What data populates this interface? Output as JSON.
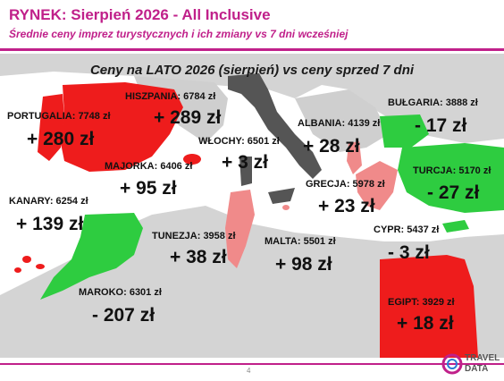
{
  "header": {
    "title": "RYNEK: Sierpień 2026 - All Inclusive",
    "subtitle": "Średnie ceny imprez turystycznych i ich zmiany vs 7 dni wcześniej"
  },
  "map_title": "Ceny na LATO 2026 (sierpień) vs ceny sprzed 7 dni",
  "destinations": [
    {
      "id": "portugalia",
      "label": "PORTUGALIA: 7748 zł",
      "delta": "+ 280 zł",
      "trend": "up"
    },
    {
      "id": "hiszpania",
      "label": "HISZPANIA: 6784 zł",
      "delta": "+ 289 zł",
      "trend": "up"
    },
    {
      "id": "majorka",
      "label": "MAJORKA: 6406 zł",
      "delta": "+ 95 zł",
      "trend": "up"
    },
    {
      "id": "wlochy",
      "label": "WŁOCHY: 6501 zł",
      "delta": "+ 3 zł",
      "trend": "flat"
    },
    {
      "id": "albania",
      "label": "ALBANIA: 4139 zł",
      "delta": "+ 28 zł",
      "trend": "up"
    },
    {
      "id": "bulgaria",
      "label": "BUŁGARIA: 3888 zł",
      "delta": "- 17 zł",
      "trend": "down"
    },
    {
      "id": "turcja",
      "label": "TURCJA: 5170 zł",
      "delta": "- 27 zł",
      "trend": "down"
    },
    {
      "id": "grecja",
      "label": "GRECJA: 5978 zł",
      "delta": "+ 23 zł",
      "trend": "up"
    },
    {
      "id": "kanary",
      "label": "KANARY: 6254 zł",
      "delta": "+ 139 zł",
      "trend": "up"
    },
    {
      "id": "tunezja",
      "label": "TUNEZJA: 3958 zł",
      "delta": "+ 38 zł",
      "trend": "up"
    },
    {
      "id": "malta",
      "label": "MALTA: 5501 zł",
      "delta": "+ 98 zł",
      "trend": "up"
    },
    {
      "id": "cypr",
      "label": "CYPR: 5437 zł",
      "delta": "- 3 zł",
      "trend": "down"
    },
    {
      "id": "maroko",
      "label": "MAROKO: 6301 zł",
      "delta": "- 207 zł",
      "trend": "down"
    },
    {
      "id": "egipt",
      "label": "EGIPT: 3929 zł",
      "delta": "+ 18 zł",
      "trend": "up"
    }
  ],
  "footer": {
    "page_number": "4",
    "logo_line1": "TRAVEL",
    "logo_line2": "DATA"
  },
  "colors": {
    "accent": "#c0208a",
    "up": "#ee1c1c",
    "up_light": "#f08a8a",
    "down": "#2ecc40",
    "flat": "#555555",
    "land": "#d4d4d4"
  }
}
